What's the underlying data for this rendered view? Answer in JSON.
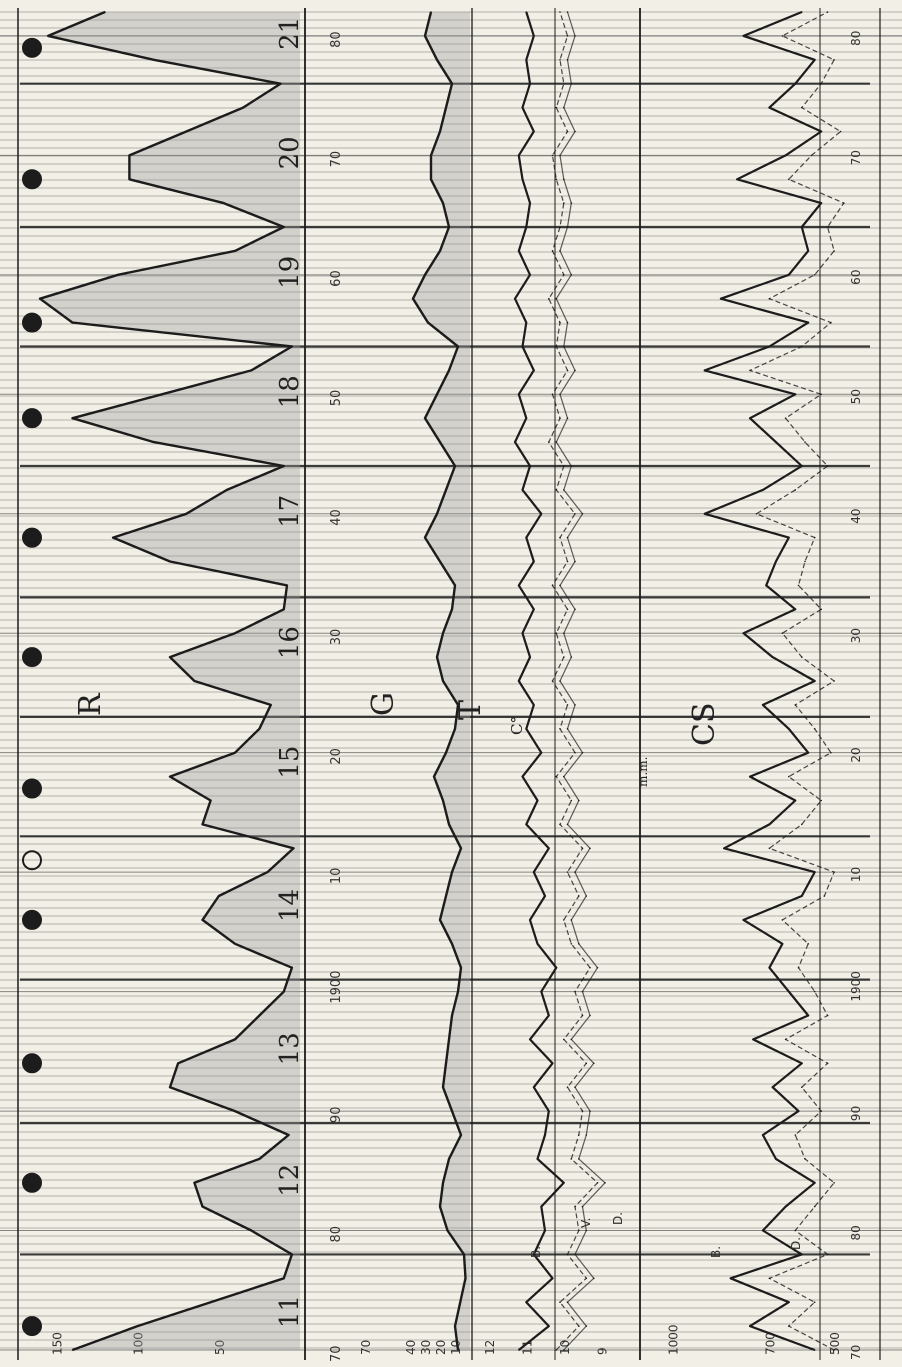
{
  "chart_data": [
    {
      "type": "line",
      "panel": "R",
      "label": "R",
      "x_tick_labels": [
        "70",
        "80",
        "90",
        "1900",
        "10",
        "20",
        "30",
        "40",
        "50",
        "60",
        "70",
        "80"
      ],
      "x_range": [
        1870,
        1982
      ],
      "y_tick_labels": [
        "150",
        "100",
        "50"
      ],
      "ylim": [
        0,
        160
      ],
      "cycle_labels": [
        "11",
        "12",
        "13",
        "14",
        "15",
        "16",
        "17",
        "18",
        "19",
        "20",
        "21"
      ],
      "series": [
        {
          "x": [
            1870,
            1872,
            1876,
            1878,
            1880,
            1882,
            1884,
            1886,
            1888,
            1890,
            1892,
            1894,
            1896,
            1898,
            1900,
            1902,
            1904,
            1906,
            1908,
            1910,
            1912,
            1914,
            1916,
            1918,
            1920,
            1922,
            1924,
            1926,
            1928,
            1930,
            1932,
            1934,
            1936,
            1938,
            1940,
            1942,
            1944,
            1946,
            1948,
            1950,
            1952,
            1954,
            1956,
            1958,
            1960,
            1962,
            1964,
            1966,
            1968,
            1970,
            1972,
            1974,
            1976,
            1978,
            1980,
            1982
          ],
          "values": [
            140,
            100,
            10,
            5,
            30,
            60,
            65,
            25,
            7,
            40,
            80,
            75,
            40,
            25,
            10,
            5,
            40,
            60,
            50,
            20,
            4,
            60,
            55,
            80,
            40,
            25,
            18,
            65,
            80,
            40,
            10,
            8,
            80,
            115,
            70,
            45,
            10,
            90,
            140,
            85,
            30,
            5,
            140,
            185,
            112,
            40,
            10,
            47,
            105,
            105,
            70,
            35,
            12,
            90,
            155,
            120
          ]
        }
      ]
    },
    {
      "type": "line",
      "panel": "G",
      "label": "G",
      "y_tick_labels": [
        "70",
        "40",
        "30",
        "20",
        "10"
      ],
      "ylim": [
        0,
        80
      ],
      "series": [
        {
          "x": [
            1870,
            1872,
            1876,
            1878,
            1880,
            1882,
            1884,
            1886,
            1888,
            1890,
            1892,
            1894,
            1896,
            1898,
            1900,
            1902,
            1904,
            1906,
            1908,
            1910,
            1912,
            1914,
            1916,
            1918,
            1920,
            1922,
            1924,
            1926,
            1928,
            1930,
            1932,
            1934,
            1936,
            1938,
            1940,
            1942,
            1944,
            1946,
            1948,
            1950,
            1952,
            1954,
            1956,
            1958,
            1960,
            1962,
            1964,
            1966,
            1968,
            1970,
            1972,
            1974,
            1976,
            1978,
            1980,
            1982
          ],
          "values": [
            8,
            10,
            3,
            4,
            15,
            20,
            18,
            14,
            6,
            12,
            18,
            16,
            14,
            12,
            8,
            6,
            12,
            20,
            16,
            12,
            6,
            14,
            18,
            24,
            16,
            10,
            8,
            18,
            22,
            18,
            12,
            10,
            20,
            30,
            22,
            16,
            10,
            20,
            30,
            22,
            14,
            8,
            28,
            38,
            30,
            20,
            14,
            18,
            26,
            26,
            20,
            16,
            12,
            22,
            30,
            26
          ]
        }
      ]
    },
    {
      "type": "line",
      "panel": "T",
      "label": "T",
      "unit_label": "C°",
      "series_labels": [
        "B.",
        "V.",
        "D."
      ],
      "y_tick_labels": [
        "12",
        "11",
        "10",
        "9"
      ],
      "ylim": [
        8.5,
        12.5
      ],
      "series": [
        {
          "name": "B.",
          "x": [
            1870,
            1872,
            1874,
            1876,
            1878,
            1880,
            1882,
            1884,
            1886,
            1888,
            1890,
            1892,
            1894,
            1896,
            1898,
            1900,
            1902,
            1904,
            1906,
            1908,
            1910,
            1912,
            1914,
            1916,
            1918,
            1920,
            1922,
            1924,
            1926,
            1928,
            1930,
            1932,
            1934,
            1936,
            1938,
            1940,
            1942,
            1944,
            1946,
            1948,
            1950,
            1952,
            1954,
            1956,
            1958,
            1960,
            1962,
            1964,
            1966,
            1968,
            1970,
            1972,
            1974,
            1976,
            1978,
            1980,
            1982
          ],
          "values": [
            11.2,
            10.4,
            11.0,
            10.3,
            10.8,
            10.5,
            10.6,
            10.0,
            10.7,
            10.5,
            10.4,
            10.8,
            10.3,
            10.9,
            10.4,
            10.6,
            10.2,
            10.7,
            10.9,
            10.5,
            10.8,
            10.4,
            11.0,
            10.7,
            11.1,
            10.6,
            11.0,
            10.8,
            11.2,
            10.9,
            11.1,
            10.8,
            11.2,
            10.8,
            11.0,
            10.6,
            11.1,
            10.9,
            11.3,
            11.0,
            11.2,
            10.8,
            11.1,
            11.0,
            11.3,
            10.9,
            11.2,
            11.0,
            10.9,
            11.1,
            11.2,
            10.8,
            11.1,
            10.9,
            11.0,
            10.8,
            11.0
          ]
        },
        {
          "name": "V.",
          "x": [
            1870,
            1872,
            1874,
            1876,
            1878,
            1880,
            1882,
            1884,
            1886,
            1888,
            1890,
            1892,
            1894,
            1896,
            1898,
            1900,
            1902,
            1904,
            1906,
            1908,
            1910,
            1912,
            1914,
            1916,
            1918,
            1920,
            1922,
            1924,
            1926,
            1928,
            1930,
            1932,
            1934,
            1936,
            1938,
            1940,
            1942,
            1944,
            1946,
            1948,
            1950,
            1952,
            1954,
            1956,
            1958,
            1960,
            1962,
            1964,
            1966,
            1968,
            1970,
            1972,
            1974,
            1976,
            1978,
            1980,
            1982
          ],
          "values": [
            10.2,
            9.6,
            10.1,
            9.4,
            9.9,
            9.6,
            9.7,
            9.1,
            9.8,
            9.6,
            9.5,
            9.9,
            9.4,
            10.0,
            9.5,
            9.7,
            9.3,
            9.8,
            10.0,
            9.6,
            9.9,
            9.5,
            10.1,
            9.8,
            10.2,
            9.7,
            10.1,
            9.9,
            10.3,
            10.0,
            10.2,
            9.9,
            10.3,
            9.9,
            10.1,
            9.7,
            10.2,
            10.0,
            10.4,
            10.1,
            10.3,
            9.9,
            10.2,
            10.1,
            10.4,
            10.0,
            10.3,
            10.1,
            10.0,
            10.2,
            10.3,
            9.9,
            10.2,
            10.0,
            10.1,
            9.9,
            10.1
          ]
        },
        {
          "name": "D.",
          "x": [
            1870,
            1872,
            1874,
            1876,
            1878,
            1880,
            1882,
            1884,
            1886,
            1888,
            1890,
            1892,
            1894,
            1896,
            1898,
            1900,
            1902,
            1904,
            1906,
            1908,
            1910,
            1912,
            1914,
            1916,
            1918,
            1920,
            1922,
            1924,
            1926,
            1928,
            1930,
            1932,
            1934,
            1936,
            1938,
            1940,
            1942,
            1944,
            1946,
            1948,
            1950,
            1952,
            1954,
            1956,
            1958,
            1960,
            1962,
            1964,
            1966,
            1968,
            1970,
            1972,
            1974,
            1976,
            1978,
            1980,
            1982
          ],
          "values": [
            10.0,
            9.4,
            9.9,
            9.2,
            9.7,
            9.4,
            9.5,
            8.9,
            9.6,
            9.4,
            9.3,
            9.7,
            9.2,
            9.8,
            9.3,
            9.5,
            9.1,
            9.6,
            9.8,
            9.4,
            9.7,
            9.3,
            9.9,
            9.6,
            10.0,
            9.5,
            9.9,
            9.7,
            10.1,
            9.8,
            10.0,
            9.7,
            10.1,
            9.7,
            9.9,
            9.5,
            10.0,
            9.8,
            10.2,
            9.9,
            10.1,
            9.7,
            10.0,
            9.9,
            10.2,
            9.8,
            10.1,
            9.9,
            9.8,
            10.0,
            10.1,
            9.7,
            10.0,
            9.8,
            9.9,
            9.7,
            9.9
          ]
        }
      ]
    },
    {
      "type": "line",
      "panel": "CS",
      "label": "CS",
      "unit_label": "m.m.",
      "series_labels": [
        "B.",
        "D."
      ],
      "y_tick_labels": [
        "1000",
        "700",
        "500"
      ],
      "ylim": [
        420,
        1100
      ],
      "series": [
        {
          "name": "B.",
          "x": [
            1870,
            1872,
            1874,
            1876,
            1878,
            1880,
            1882,
            1884,
            1886,
            1888,
            1890,
            1892,
            1894,
            1896,
            1898,
            1900,
            1902,
            1904,
            1906,
            1908,
            1910,
            1912,
            1914,
            1916,
            1918,
            1920,
            1922,
            1924,
            1926,
            1928,
            1930,
            1932,
            1934,
            1936,
            1938,
            1940,
            1942,
            1944,
            1946,
            1948,
            1950,
            1952,
            1954,
            1956,
            1958,
            1960,
            1962,
            1964,
            1966,
            1968,
            1970,
            1972,
            1974,
            1976,
            1978,
            1980,
            1982
          ],
          "values": [
            560,
            760,
            640,
            820,
            600,
            720,
            650,
            560,
            680,
            720,
            610,
            690,
            600,
            750,
            580,
            640,
            700,
            660,
            780,
            600,
            560,
            840,
            700,
            620,
            760,
            580,
            640,
            720,
            560,
            690,
            780,
            620,
            710,
            680,
            640,
            900,
            720,
            600,
            680,
            760,
            620,
            900,
            700,
            580,
            850,
            640,
            580,
            600,
            540,
            800,
            650,
            540,
            700,
            620,
            560,
            780,
            600
          ]
        },
        {
          "name": "D.",
          "x": [
            1870,
            1872,
            1874,
            1876,
            1878,
            1880,
            1882,
            1884,
            1886,
            1888,
            1890,
            1892,
            1894,
            1896,
            1898,
            1900,
            1902,
            1904,
            1906,
            1908,
            1910,
            1912,
            1914,
            1916,
            1918,
            1920,
            1922,
            1924,
            1926,
            1928,
            1930,
            1932,
            1934,
            1936,
            1938,
            1940,
            1942,
            1944,
            1946,
            1948,
            1950,
            1952,
            1954,
            1956,
            1958,
            1960,
            1962,
            1964,
            1966,
            1968,
            1970,
            1972,
            1974,
            1976,
            1978,
            1980,
            1982
          ],
          "values": [
            500,
            640,
            560,
            700,
            520,
            620,
            560,
            500,
            590,
            620,
            540,
            600,
            520,
            650,
            520,
            560,
            610,
            580,
            660,
            530,
            500,
            700,
            600,
            540,
            640,
            510,
            560,
            620,
            500,
            600,
            660,
            540,
            610,
            590,
            560,
            740,
            620,
            520,
            590,
            650,
            540,
            760,
            600,
            510,
            700,
            560,
            500,
            520,
            470,
            640,
            570,
            480,
            600,
            540,
            500,
            660,
            520
          ]
        }
      ]
    }
  ],
  "colors": {
    "paper": "#f2efe6",
    "ink": "#1c1c1c",
    "grid": "#5a5a5a",
    "shade": "#9a9a9a"
  }
}
